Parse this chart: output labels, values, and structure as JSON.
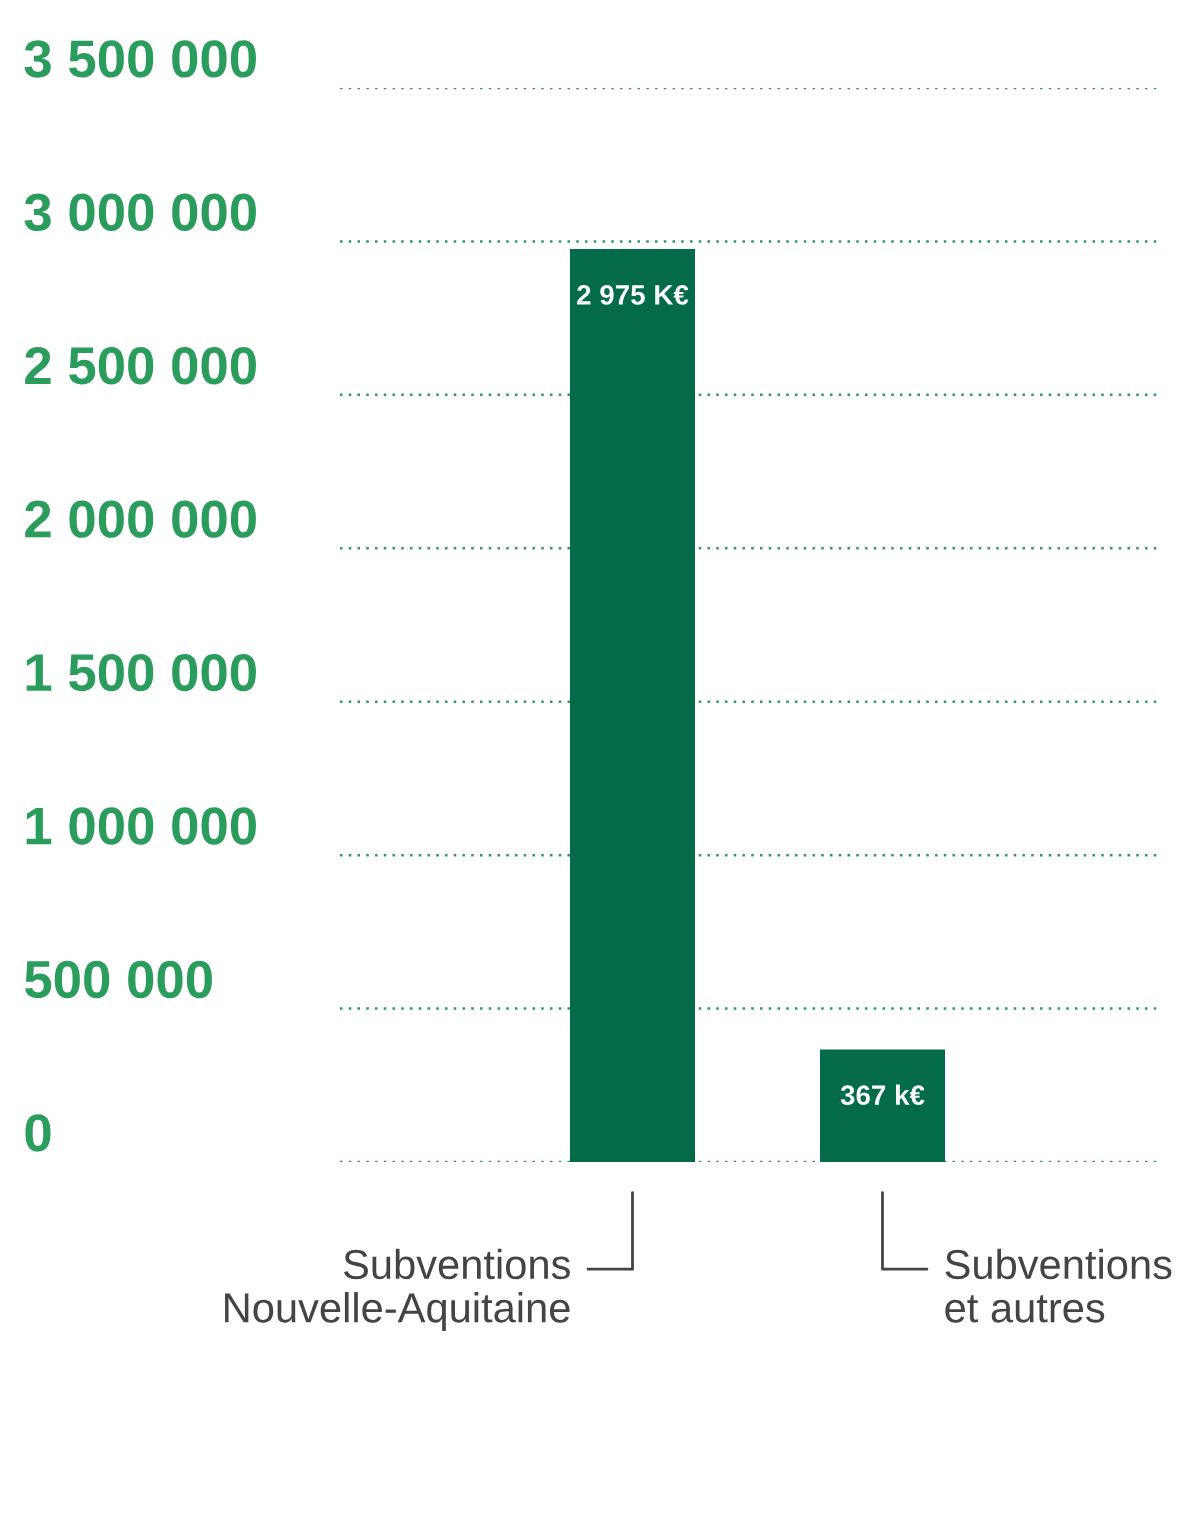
{
  "chart_data": {
    "type": "bar",
    "categories": [
      "Subventions\nNouvelle-Aquitaine",
      "Subventions\net autres"
    ],
    "values": [
      2975000,
      367000
    ],
    "value_labels": [
      "2 975 K€",
      "367 k€"
    ],
    "color": "#046b4a",
    "ylim": [
      0,
      3500000
    ],
    "yticks": [
      0,
      {
        "value": 500000,
        "label": "500 000"
      },
      {
        "value": 1000000,
        "label": "1 000 000"
      },
      {
        "value": 1500000,
        "label": "1 500 000"
      },
      {
        "value": 2000000,
        "label": "2 000 000"
      },
      {
        "value": 2500000,
        "label": "2 500 000"
      },
      {
        "value": 3000000,
        "label": "3 000 000"
      },
      {
        "value": 3500000,
        "label": "3 500 000"
      }
    ],
    "grid": "y",
    "legend": false
  }
}
